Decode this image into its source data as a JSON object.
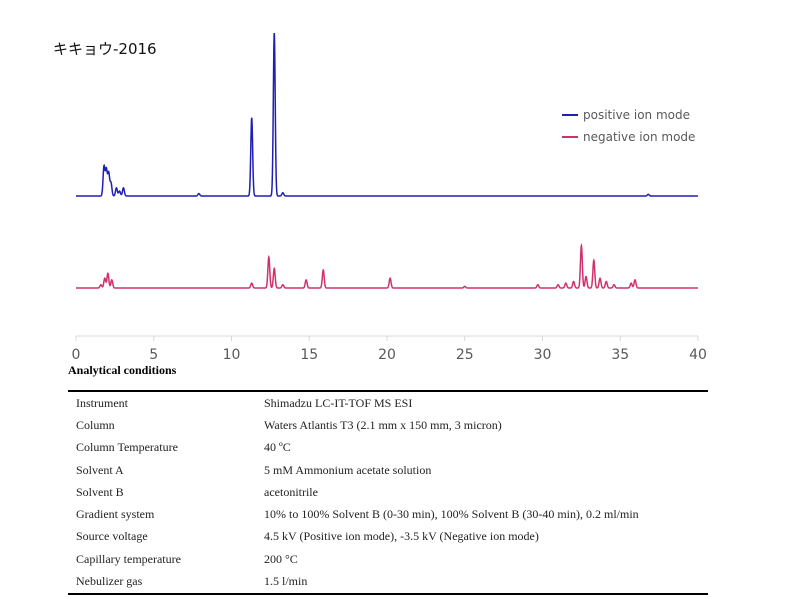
{
  "sample_title": "キキョウ-2016",
  "chart_data": {
    "type": "line",
    "x_ticks": [
      0,
      5,
      10,
      15,
      20,
      25,
      30,
      35,
      40
    ],
    "xlim": [
      0,
      40
    ],
    "legend_position": "top-right",
    "series": [
      {
        "name": "positive ion mode",
        "color": "#1f1fb4",
        "baseline": 0,
        "peaks": [
          {
            "x": 1.8,
            "y": 0.18
          },
          {
            "x": 1.95,
            "y": 0.16
          },
          {
            "x": 2.1,
            "y": 0.14
          },
          {
            "x": 2.25,
            "y": 0.08
          },
          {
            "x": 2.6,
            "y": 0.05
          },
          {
            "x": 2.8,
            "y": 0.03
          },
          {
            "x": 3.05,
            "y": 0.05
          },
          {
            "x": 7.9,
            "y": 0.015
          },
          {
            "x": 11.3,
            "y": 0.48
          },
          {
            "x": 12.75,
            "y": 1.0
          },
          {
            "x": 13.3,
            "y": 0.02
          },
          {
            "x": 36.8,
            "y": 0.01
          }
        ]
      },
      {
        "name": "negative ion mode",
        "color": "#d0306c",
        "baseline": 0,
        "peaks": [
          {
            "x": 1.6,
            "y": 0.02
          },
          {
            "x": 1.85,
            "y": 0.06
          },
          {
            "x": 2.05,
            "y": 0.09
          },
          {
            "x": 2.3,
            "y": 0.05
          },
          {
            "x": 11.3,
            "y": 0.03
          },
          {
            "x": 12.4,
            "y": 0.19
          },
          {
            "x": 12.75,
            "y": 0.12
          },
          {
            "x": 13.3,
            "y": 0.02
          },
          {
            "x": 14.8,
            "y": 0.05
          },
          {
            "x": 15.9,
            "y": 0.11
          },
          {
            "x": 20.2,
            "y": 0.06
          },
          {
            "x": 25.0,
            "y": 0.01
          },
          {
            "x": 29.7,
            "y": 0.02
          },
          {
            "x": 31.0,
            "y": 0.02
          },
          {
            "x": 31.5,
            "y": 0.03
          },
          {
            "x": 32.0,
            "y": 0.04
          },
          {
            "x": 32.5,
            "y": 0.26
          },
          {
            "x": 32.8,
            "y": 0.07
          },
          {
            "x": 33.3,
            "y": 0.17
          },
          {
            "x": 33.7,
            "y": 0.06
          },
          {
            "x": 34.1,
            "y": 0.04
          },
          {
            "x": 34.6,
            "y": 0.02
          },
          {
            "x": 35.7,
            "y": 0.03
          },
          {
            "x": 35.95,
            "y": 0.05
          }
        ]
      }
    ]
  },
  "conditions": {
    "heading": "Analytical conditions",
    "rows": [
      {
        "key": "Instrument",
        "value": "Shimadzu LC-IT-TOF MS ESI"
      },
      {
        "key": "Column",
        "value": "Waters Atlantis T3 (2.1 mm x 150 mm, 3 micron)"
      },
      {
        "key": "Column Temperature",
        "value": "40 ºC"
      },
      {
        "key": "Solvent A",
        "value": "5 mM Ammonium acetate solution"
      },
      {
        "key": "Solvent B",
        "value": "acetonitrile"
      },
      {
        "key": "Gradient system",
        "value": "10% to 100% Solvent B (0-30 min), 100% Solvent B (30-40 min), 0.2 ml/min"
      },
      {
        "key": "Source voltage",
        "value": "4.5 kV (Positive ion mode), -3.5 kV (Negative ion mode)"
      },
      {
        "key": "Capillary temperature",
        "value": "200 °C"
      },
      {
        "key": "Nebulizer gas",
        "value": "1.5 l/min"
      }
    ]
  }
}
